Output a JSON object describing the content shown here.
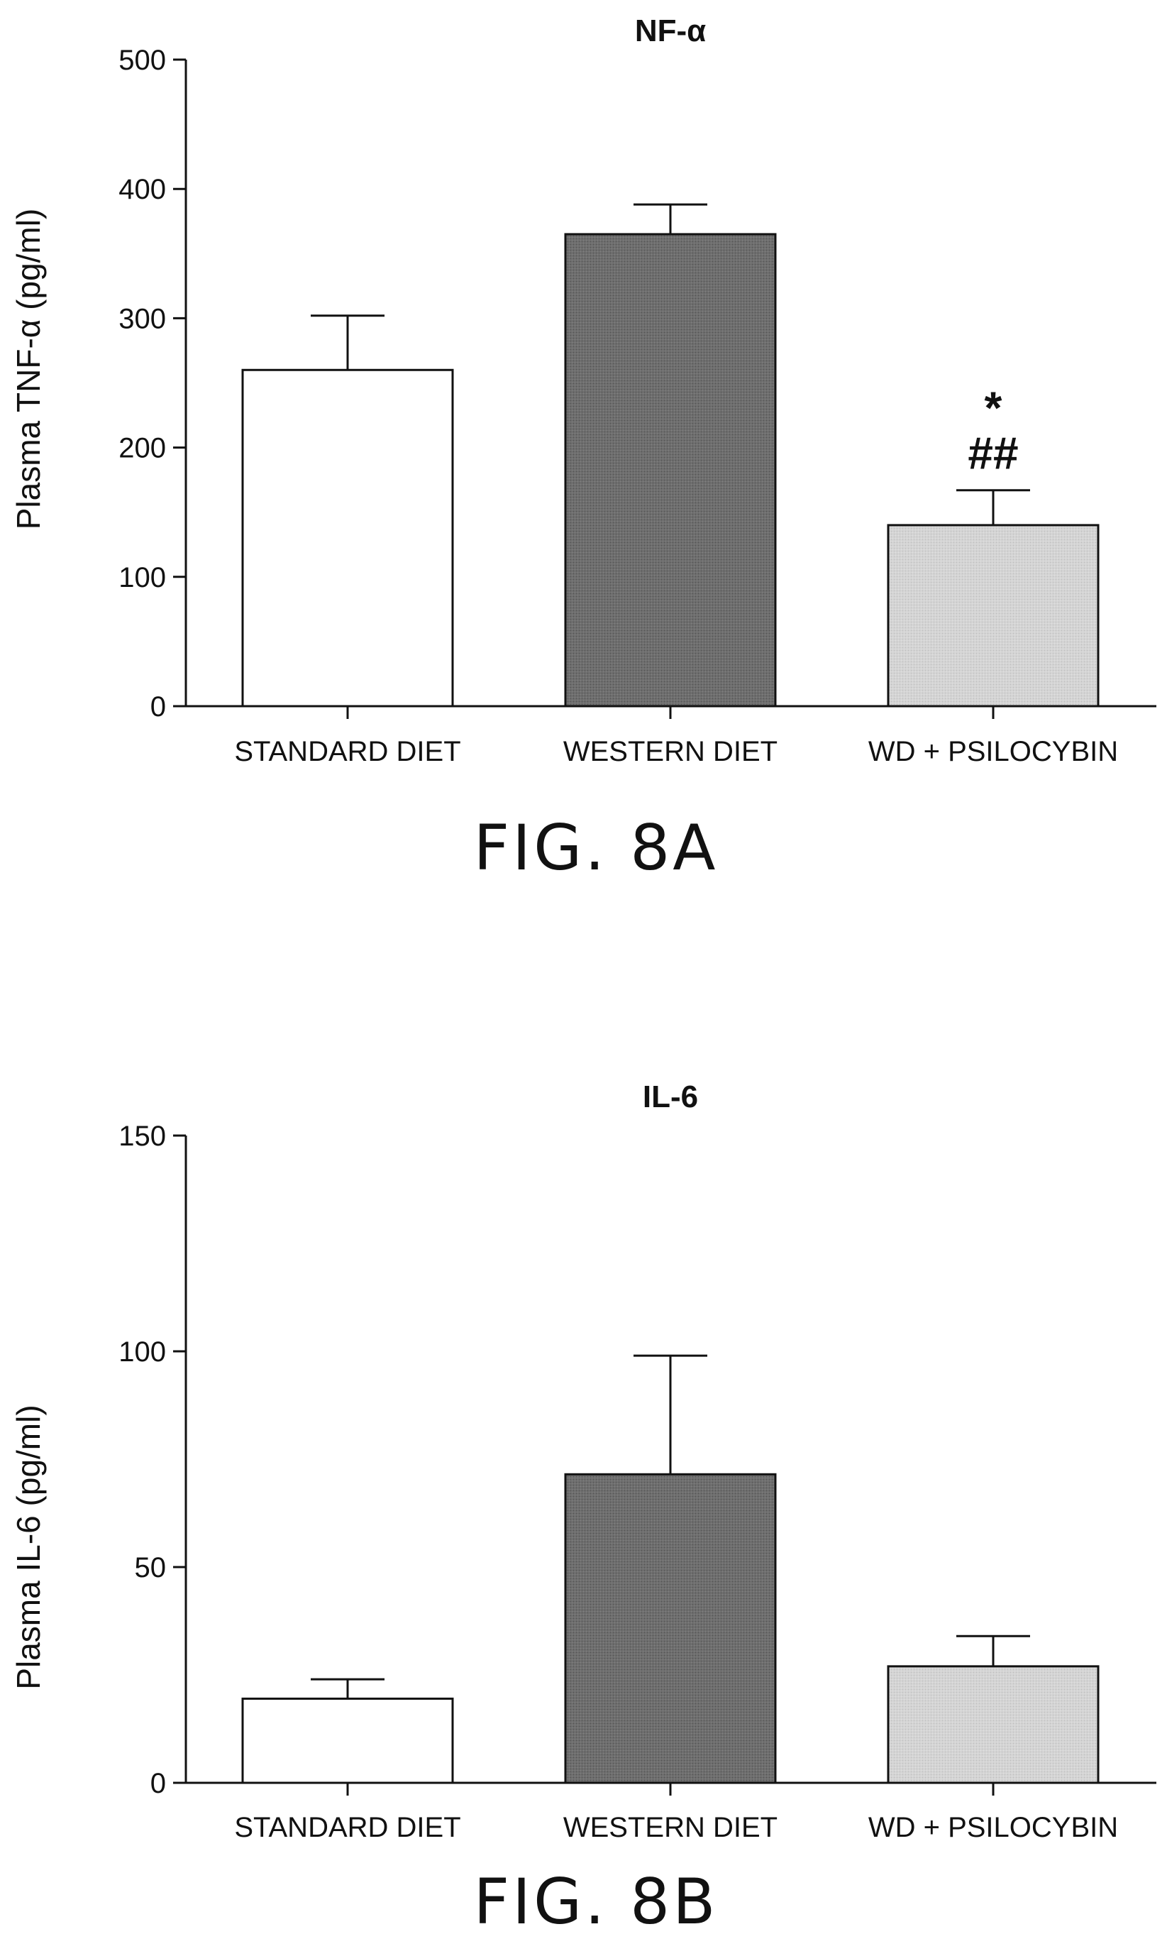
{
  "chart_data": [
    {
      "type": "bar",
      "title": "NF-α",
      "ylabel": "Plasma TNF-α (pg/ml)",
      "xlabel": "",
      "ylim": [
        0,
        500
      ],
      "yticks": [
        0,
        100,
        200,
        300,
        400,
        500
      ],
      "categories": [
        "STANDARD DIET",
        "WESTERN DIET",
        "WD + PSILOCYBIN"
      ],
      "values": [
        260,
        365,
        140
      ],
      "error_upper": [
        302,
        388,
        167
      ],
      "annotations": [
        "",
        "",
        "*\n##"
      ],
      "caption": "FIG. 8A"
    },
    {
      "type": "bar",
      "title": "IL-6",
      "ylabel": "Plasma IL-6 (pg/ml)",
      "xlabel": "",
      "ylim": [
        0,
        150
      ],
      "yticks": [
        0,
        50,
        100,
        150
      ],
      "categories": [
        "STANDARD DIET",
        "WESTERN DIET",
        "WD + PSILOCYBIN"
      ],
      "values": [
        19.5,
        71.5,
        27
      ],
      "error_upper": [
        24,
        99,
        34
      ],
      "annotations": [
        "",
        "",
        ""
      ],
      "caption": "FIG. 8B"
    }
  ],
  "colors": {
    "bar_fills": [
      "#ffffff",
      "#6e6e6e",
      "#d4d4d4"
    ],
    "stroke": "#111111"
  }
}
